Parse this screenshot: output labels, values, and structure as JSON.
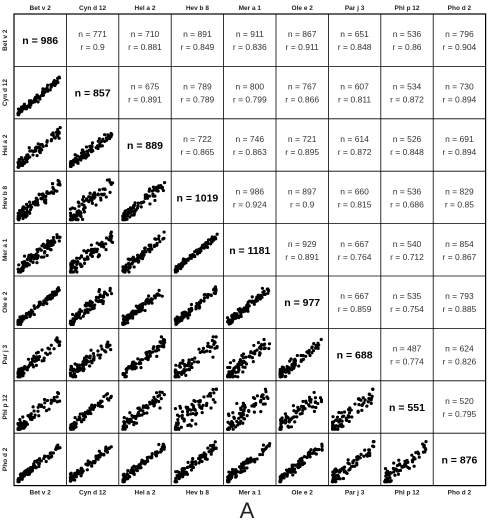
{
  "figure": {
    "panel_label": "A"
  },
  "chart_data": {
    "type": "scatter-matrix",
    "variables": [
      "Bet v 2",
      "Cyn d 12",
      "Hel a 2",
      "Hev b 8",
      "Mer a 1",
      "Ole e 2",
      "Par j 3",
      "Phl p 12",
      "Pho d 2"
    ],
    "diagonal_n": [
      986,
      857,
      889,
      1019,
      1181,
      977,
      688,
      551,
      876
    ],
    "upper_n": [
      [
        null,
        771,
        710,
        891,
        911,
        867,
        651,
        536,
        796
      ],
      [
        null,
        null,
        675,
        789,
        800,
        767,
        607,
        534,
        730
      ],
      [
        null,
        null,
        null,
        722,
        746,
        721,
        614,
        526,
        691
      ],
      [
        null,
        null,
        null,
        null,
        986,
        897,
        660,
        536,
        829
      ],
      [
        null,
        null,
        null,
        null,
        null,
        929,
        667,
        540,
        854
      ],
      [
        null,
        null,
        null,
        null,
        null,
        null,
        667,
        535,
        793
      ],
      [
        null,
        null,
        null,
        null,
        null,
        null,
        null,
        487,
        624
      ],
      [
        null,
        null,
        null,
        null,
        null,
        null,
        null,
        null,
        520
      ],
      [
        null,
        null,
        null,
        null,
        null,
        null,
        null,
        null,
        null
      ]
    ],
    "upper_r": [
      [
        null,
        0.9,
        0.881,
        0.849,
        0.836,
        0.911,
        0.848,
        0.86,
        0.904
      ],
      [
        null,
        null,
        0.891,
        0.789,
        0.799,
        0.866,
        0.811,
        0.872,
        0.894
      ],
      [
        null,
        null,
        null,
        0.865,
        0.863,
        0.895,
        0.872,
        0.848,
        0.894
      ],
      [
        null,
        null,
        null,
        null,
        0.924,
        0.9,
        0.815,
        0.686,
        0.85
      ],
      [
        null,
        null,
        null,
        null,
        null,
        0.891,
        0.764,
        0.712,
        0.867
      ],
      [
        null,
        null,
        null,
        null,
        null,
        null,
        0.859,
        0.754,
        0.885
      ],
      [
        null,
        null,
        null,
        null,
        null,
        null,
        null,
        0.774,
        0.826
      ],
      [
        null,
        null,
        null,
        null,
        null,
        null,
        null,
        null,
        0.795
      ],
      [
        null,
        null,
        null,
        null,
        null,
        null,
        null,
        null,
        null
      ]
    ],
    "n_prefix": "n = ",
    "r_prefix": "r = ",
    "lower_triangle": "scatter"
  }
}
